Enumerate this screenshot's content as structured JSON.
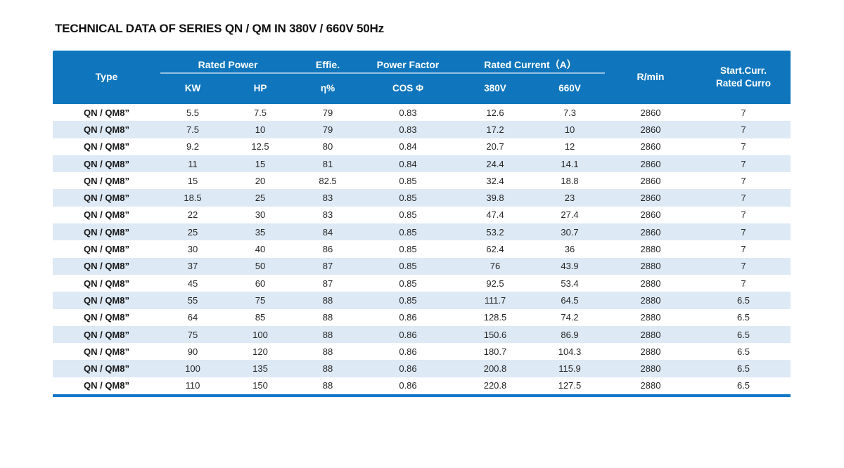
{
  "title": "TECHNICAL DATA OF SERIES QN / QM IN 380V / 660V 50Hz",
  "table": {
    "header": {
      "type": "Type",
      "rated_power": "Rated Power",
      "kw": "KW",
      "hp": "HP",
      "effie": "Effie.",
      "eta": "η%",
      "power_factor": "Power Factor",
      "cos_phi": "COS Φ",
      "rated_current": "Rated Current（A）",
      "v380": "380V",
      "v660": "660V",
      "rpm": "R/min",
      "start_curr_line1": "Start.Curr.",
      "start_curr_line2": "Rated Curro"
    },
    "rows": [
      {
        "type": "QN / QM8”",
        "kw": "5.5",
        "hp": "7.5",
        "eff": "79",
        "cos": "0.83",
        "a380": "12.6",
        "a660": "7.3",
        "rpm": "2860",
        "start": "7"
      },
      {
        "type": "QN / QM8”",
        "kw": "7.5",
        "hp": "10",
        "eff": "79",
        "cos": "0.83",
        "a380": "17.2",
        "a660": "10",
        "rpm": "2860",
        "start": "7"
      },
      {
        "type": "QN / QM8”",
        "kw": "9.2",
        "hp": "12.5",
        "eff": "80",
        "cos": "0.84",
        "a380": "20.7",
        "a660": "12",
        "rpm": "2860",
        "start": "7"
      },
      {
        "type": "QN / QM8”",
        "kw": "11",
        "hp": "15",
        "eff": "81",
        "cos": "0.84",
        "a380": "24.4",
        "a660": "14.1",
        "rpm": "2860",
        "start": "7"
      },
      {
        "type": "QN / QM8”",
        "kw": "15",
        "hp": "20",
        "eff": "82.5",
        "cos": "0.85",
        "a380": "32.4",
        "a660": "18.8",
        "rpm": "2860",
        "start": "7"
      },
      {
        "type": "QN / QM8”",
        "kw": "18.5",
        "hp": "25",
        "eff": "83",
        "cos": "0.85",
        "a380": "39.8",
        "a660": "23",
        "rpm": "2860",
        "start": "7"
      },
      {
        "type": "QN / QM8”",
        "kw": "22",
        "hp": "30",
        "eff": "83",
        "cos": "0.85",
        "a380": "47.4",
        "a660": "27.4",
        "rpm": "2860",
        "start": "7"
      },
      {
        "type": "QN / QM8”",
        "kw": "25",
        "hp": "35",
        "eff": "84",
        "cos": "0.85",
        "a380": "53.2",
        "a660": "30.7",
        "rpm": "2860",
        "start": "7"
      },
      {
        "type": "QN / QM8”",
        "kw": "30",
        "hp": "40",
        "eff": "86",
        "cos": "0.85",
        "a380": "62.4",
        "a660": "36",
        "rpm": "2880",
        "start": "7"
      },
      {
        "type": "QN / QM8”",
        "kw": "37",
        "hp": "50",
        "eff": "87",
        "cos": "0.85",
        "a380": "76",
        "a660": "43.9",
        "rpm": "2880",
        "start": "7"
      },
      {
        "type": "QN / QM8”",
        "kw": "45",
        "hp": "60",
        "eff": "87",
        "cos": "0.85",
        "a380": "92.5",
        "a660": "53.4",
        "rpm": "2880",
        "start": "7"
      },
      {
        "type": "QN / QM8”",
        "kw": "55",
        "hp": "75",
        "eff": "88",
        "cos": "0.85",
        "a380": "111.7",
        "a660": "64.5",
        "rpm": "2880",
        "start": "6.5"
      },
      {
        "type": "QN / QM8”",
        "kw": "64",
        "hp": "85",
        "eff": "88",
        "cos": "0.86",
        "a380": "128.5",
        "a660": "74.2",
        "rpm": "2880",
        "start": "6.5"
      },
      {
        "type": "QN / QM8”",
        "kw": "75",
        "hp": "100",
        "eff": "88",
        "cos": "0.86",
        "a380": "150.6",
        "a660": "86.9",
        "rpm": "2880",
        "start": "6.5"
      },
      {
        "type": "QN / QM8”",
        "kw": "90",
        "hp": "120",
        "eff": "88",
        "cos": "0.86",
        "a380": "180.7",
        "a660": "104.3",
        "rpm": "2880",
        "start": "6.5"
      },
      {
        "type": "QN / QM8”",
        "kw": "100",
        "hp": "135",
        "eff": "88",
        "cos": "0.86",
        "a380": "200.8",
        "a660": "115.9",
        "rpm": "2880",
        "start": "6.5"
      },
      {
        "type": "QN / QM8”",
        "kw": "110",
        "hp": "150",
        "eff": "88",
        "cos": "0.86",
        "a380": "220.8",
        "a660": "127.5",
        "rpm": "2880",
        "start": "6.5"
      }
    ]
  },
  "colors": {
    "header_bg": "#0f76bd",
    "row_stripe": "#dde9f5",
    "bottom_rule": "#1578c9",
    "body_text": "#262626"
  }
}
